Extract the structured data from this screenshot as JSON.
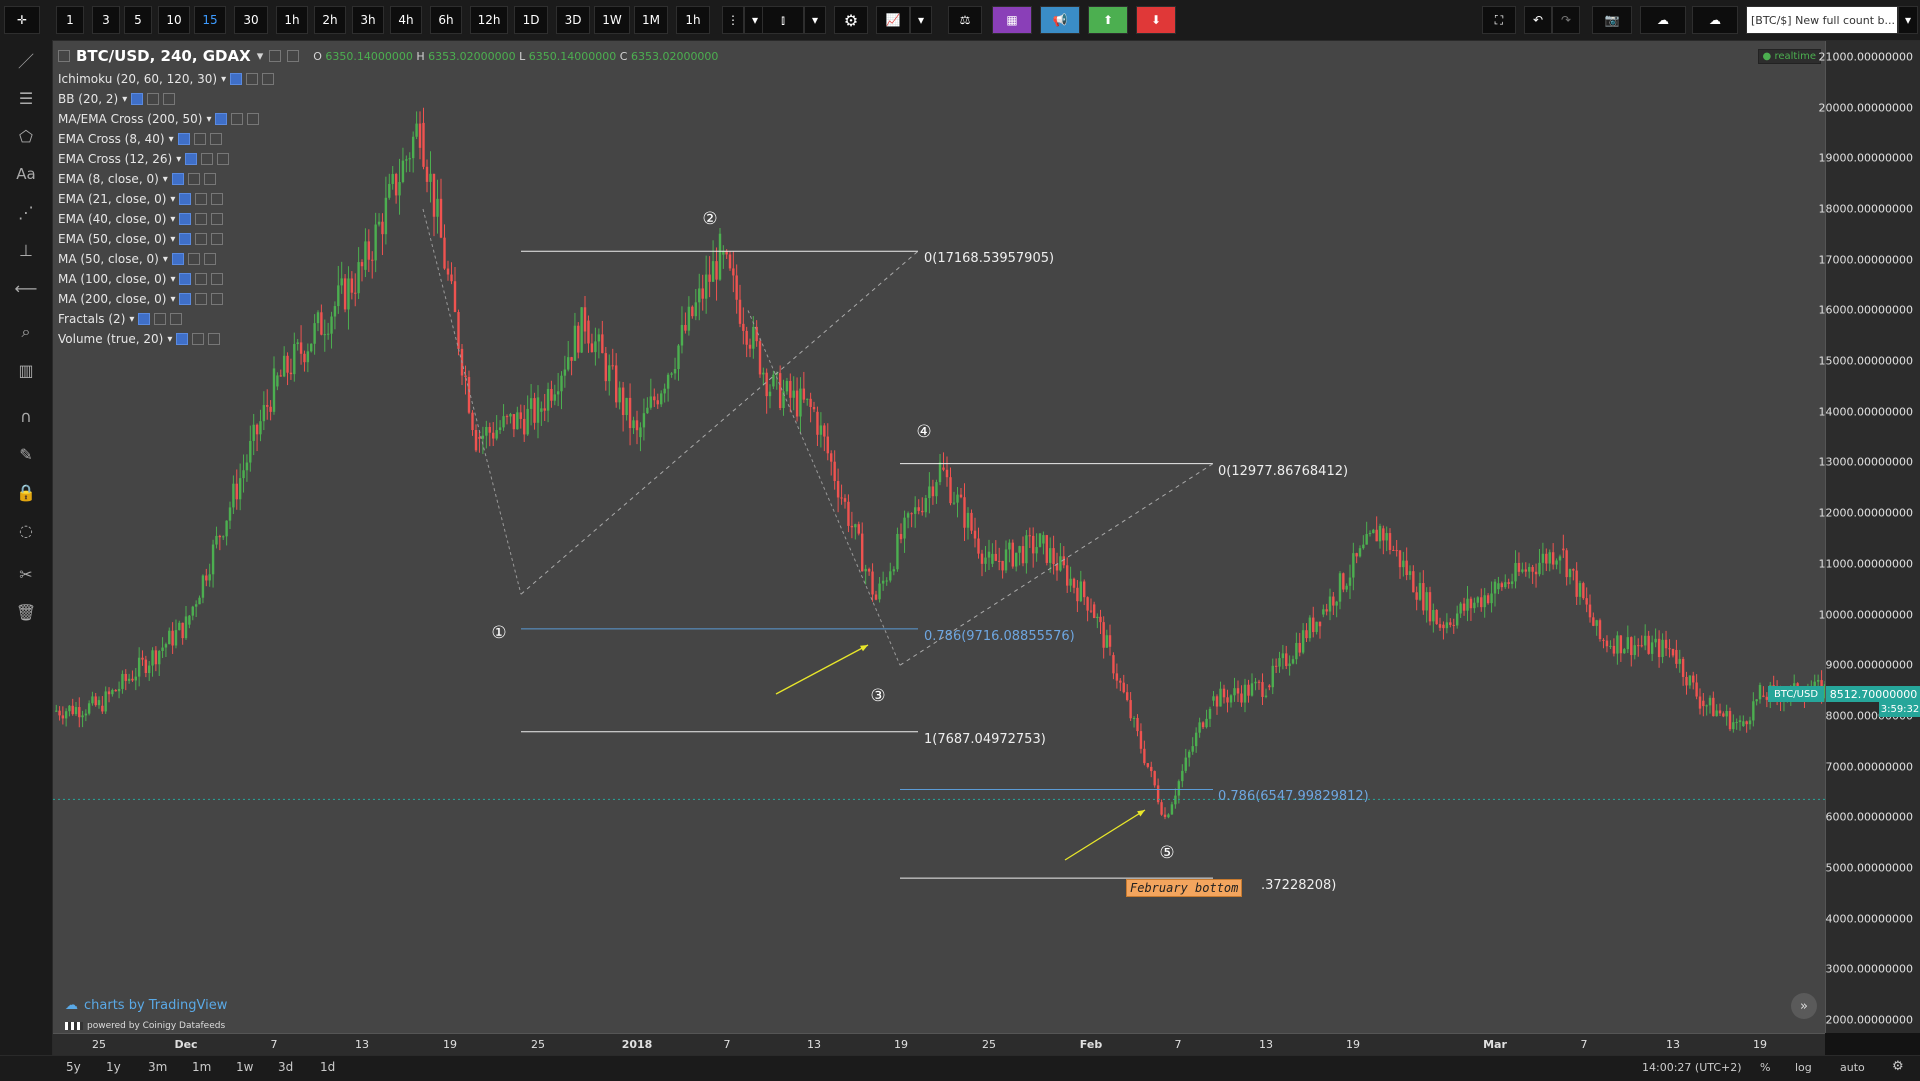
{
  "toolbar": {
    "intervals": [
      "1",
      "3",
      "5",
      "10",
      "15",
      "30",
      "1h",
      "2h",
      "3h",
      "4h",
      "6h",
      "12h",
      "1D",
      "3D",
      "1W",
      "1M",
      "1h"
    ],
    "active_interval_index": 4,
    "chart_title_box": "[BTC/$] New full count b..."
  },
  "legend": {
    "symbol": "BTC/USD, 240, GDAX",
    "o_label": "O",
    "o": "6350.14000000",
    "h_label": "H",
    "h": "6353.02000000",
    "l_label": "L",
    "l": "6350.14000000",
    "c_label": "C",
    "c": "6353.02000000",
    "realtime": "realtime"
  },
  "indicators": [
    "Ichimoku (20, 60, 120, 30)",
    "BB (20, 2)",
    "MA/EMA Cross (200, 50)",
    "EMA Cross (8, 40)",
    "EMA Cross (12, 26)",
    "EMA (8, close, 0)",
    "EMA (21, close, 0)",
    "EMA (40, close, 0)",
    "EMA (50, close, 0)",
    "MA (50, close, 0)",
    "MA (100, close, 0)",
    "MA (200, close, 0)",
    "Fractals (2)",
    "Volume (true, 20)"
  ],
  "annotations": {
    "wave_labels": [
      "①",
      "②",
      "③",
      "④",
      "⑤"
    ],
    "fib_a_top": "0(17168.53957905)",
    "fib_a_mid": "0.786(9716.08855576)",
    "fib_a_bot": "1(7687.04972753)",
    "fib_b_top": "0(12977.86768412)",
    "fib_b_mid": "0.786(6547.99829812)",
    "fib_b_bot": ".37228208)",
    "callout": "February bottom"
  },
  "price_axis": {
    "ticks": [
      "21000.00000000",
      "20000.00000000",
      "19000.00000000",
      "18000.00000000",
      "17000.00000000",
      "16000.00000000",
      "15000.00000000",
      "14000.00000000",
      "13000.00000000",
      "12000.00000000",
      "11000.00000000",
      "10000.00000000",
      "9000.00000000",
      "8000.00000000",
      "7000.00000000",
      "6000.00000000",
      "5000.00000000",
      "4000.00000000",
      "3000.00000000",
      "2000.00000000"
    ],
    "symbol_badge": "BTC/USD",
    "last_price": "8512.70000000",
    "countdown": "3:59:32"
  },
  "time_axis": {
    "ticks": [
      "25",
      "Dec",
      "7",
      "13",
      "19",
      "25",
      "2018",
      "7",
      "13",
      "19",
      "25",
      "Feb",
      "7",
      "13",
      "19",
      "Mar",
      "7",
      "13",
      "19"
    ]
  },
  "branding": {
    "charts_by": "charts by TradingView",
    "powered_by": "powered by Coinigy Datafeeds"
  },
  "bottombar": {
    "ranges": [
      "5y",
      "1y",
      "3m",
      "1m",
      "1w",
      "3d",
      "1d"
    ],
    "clock": "14:00:27 (UTC+2)",
    "percent": "%",
    "log": "log",
    "auto": "auto"
  },
  "colors": {
    "up": "#4caf50",
    "down": "#ef5350",
    "fib_blue": "#5b9bd5",
    "arrow": "#e8e62a",
    "callout_bg": "#f3a55e",
    "badge_green": "#26a69a"
  },
  "chart_data": {
    "type": "line",
    "x": [
      "Nov 20",
      "Nov 25",
      "Dec 1",
      "Dec 7",
      "Dec 13",
      "Dec 17",
      "Dec 22",
      "Dec 25",
      "Dec 28",
      "Jan 1",
      "Jan 6",
      "Jan 10",
      "Jan 13",
      "Jan 17",
      "Jan 19",
      "Jan 22",
      "Jan 25",
      "Jan 28",
      "Jan 31",
      "Feb 2",
      "Feb 6",
      "Feb 9",
      "Feb 13",
      "Feb 17",
      "Feb 20",
      "Feb 24",
      "Feb 28",
      "Mar 5",
      "Mar 8",
      "Mar 12",
      "Mar 15",
      "Mar 18",
      "Mar 20",
      "Mar 23"
    ],
    "series": [
      {
        "values": [
          8100,
          8200,
          9800,
          14500,
          16800,
          19700,
          13500,
          14000,
          15800,
          13500,
          17100,
          14500,
          14000,
          10300,
          11500,
          12900,
          11000,
          11400,
          10200,
          9200,
          6000,
          8300,
          8600,
          10000,
          11700,
          9800,
          10500,
          11300,
          9500,
          9300,
          8300,
          7800,
          8400,
          8512.7
        ]
      }
    ],
    "ylim": [
      2000,
      21000
    ],
    "log_scale": false,
    "grid": false
  }
}
